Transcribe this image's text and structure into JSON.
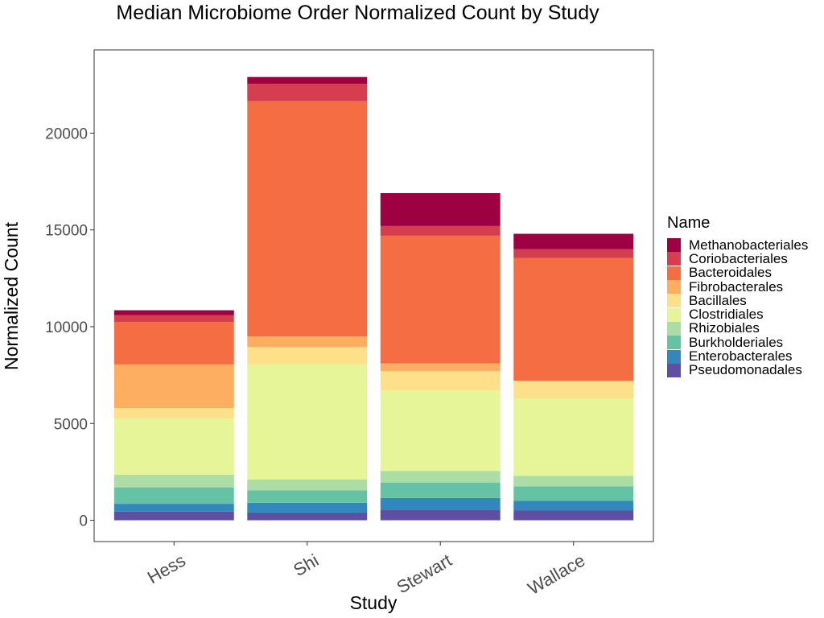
{
  "chart_data": {
    "type": "bar",
    "stacked": true,
    "title": "Median Microbiome Order Normalized Count by Study",
    "xlabel": "Study",
    "ylabel": "Normalized Count",
    "categories": [
      "Hess",
      "Shi",
      "Stewart",
      "Wallace"
    ],
    "ylim": [
      -1100,
      24300
    ],
    "yticks": [
      0,
      5000,
      10000,
      15000,
      20000
    ],
    "ytick_labels": [
      "0",
      "5000",
      "10000",
      "15000",
      "20000"
    ],
    "grid": false,
    "legend": {
      "title": "Name",
      "position": "right"
    },
    "series": [
      {
        "name": "Pseudomonadales",
        "color": "#5E4FA2",
        "values": [
          450,
          400,
          550,
          500
        ]
      },
      {
        "name": "Enterobacterales",
        "color": "#3288BD",
        "values": [
          400,
          500,
          600,
          500
        ]
      },
      {
        "name": "Burkholderiales",
        "color": "#66C2A5",
        "values": [
          850,
          650,
          800,
          750
        ]
      },
      {
        "name": "Rhizobiales",
        "color": "#ABDDA4",
        "values": [
          650,
          550,
          600,
          550
        ]
      },
      {
        "name": "Clostridiales",
        "color": "#E6F598",
        "values": [
          2900,
          5950,
          4150,
          4000
        ]
      },
      {
        "name": "Bacillales",
        "color": "#FEE08B",
        "values": [
          550,
          900,
          1000,
          900
        ]
      },
      {
        "name": "Fibrobacterales",
        "color": "#FDAE61",
        "values": [
          2250,
          550,
          400,
          0
        ]
      },
      {
        "name": "Bacteroidales",
        "color": "#F46D43",
        "values": [
          2200,
          12150,
          6600,
          6350
        ]
      },
      {
        "name": "Coriobacteriales",
        "color": "#D53E4F",
        "values": [
          350,
          900,
          500,
          450
        ]
      },
      {
        "name": "Methanobacteriales",
        "color": "#9E0142",
        "values": [
          250,
          350,
          1700,
          800
        ]
      }
    ]
  }
}
